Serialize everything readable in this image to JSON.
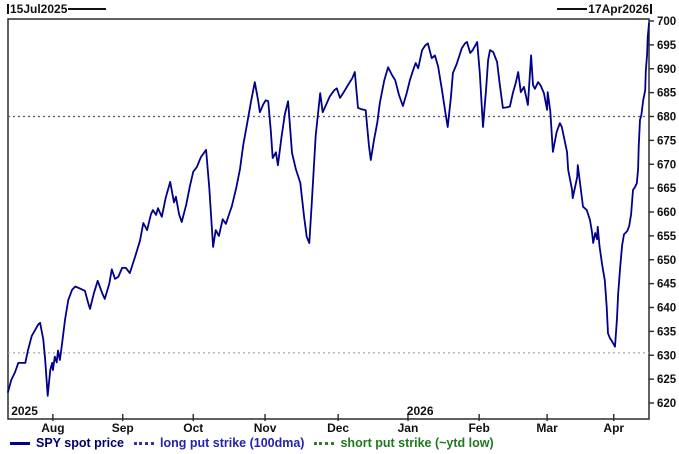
{
  "annotations": {
    "start": "15Jul2025",
    "end": "17Apr2026"
  },
  "legend": [
    {
      "label": "SPY spot price",
      "swatch": "solid",
      "swatch_color": "#00008b",
      "text_color": "#00006b"
    },
    {
      "label": "long put strike (100dma)",
      "swatch": "dotted",
      "swatch_color": "#32329e",
      "text_color": "#2323b0"
    },
    {
      "label": "short put strike (~ytd low)",
      "swatch": "dotted",
      "swatch_color": "#2e7d32",
      "text_color": "#1f7a1f"
    }
  ],
  "chart_data": {
    "type": "line",
    "title": "",
    "xlabel": "",
    "ylabel": "",
    "x_range": {
      "start": "2025-07-15",
      "end": "2026-04-17"
    },
    "y_axis": {
      "min": 620,
      "max": 700,
      "tick_step": 5,
      "side": "right"
    },
    "grid": "off",
    "legend_position": "bottom-left",
    "x_ticks": [
      {
        "label": "Aug",
        "f": 0.07
      },
      {
        "label": "Sep",
        "f": 0.179
      },
      {
        "label": "Oct",
        "f": 0.289
      },
      {
        "label": "Nov",
        "f": 0.401
      },
      {
        "label": "Dec",
        "f": 0.515
      },
      {
        "label": "Jan",
        "f": 0.624
      },
      {
        "label": "Feb",
        "f": 0.735
      },
      {
        "label": "Mar",
        "f": 0.841
      },
      {
        "label": "Apr",
        "f": 0.945
      }
    ],
    "year_labels": [
      {
        "label": "2025",
        "f": 0.005,
        "align": "start"
      },
      {
        "label": "2026",
        "f": 0.643,
        "align": "middle"
      }
    ],
    "reference_lines": [
      {
        "name": "long put strike (100dma)",
        "value": 680,
        "style": "dotted",
        "color": "#55557d"
      },
      {
        "name": "short put strike (~ytd low)",
        "value": 630.5,
        "style": "dotted",
        "color": "#a2aba2"
      }
    ],
    "series": [
      {
        "name": "SPY spot price",
        "color": "#00008b",
        "width": 1.8,
        "points": [
          [
            0.0,
            622.3
          ],
          [
            0.005,
            624.8
          ],
          [
            0.011,
            626.5
          ],
          [
            0.016,
            628.4
          ],
          [
            0.027,
            628.4
          ],
          [
            0.031,
            631
          ],
          [
            0.037,
            634
          ],
          [
            0.047,
            636.4
          ],
          [
            0.05,
            636.8
          ],
          [
            0.055,
            633.3
          ],
          [
            0.058,
            629
          ],
          [
            0.062,
            621.5
          ],
          [
            0.066,
            627
          ],
          [
            0.069,
            628.4
          ],
          [
            0.07,
            626.9
          ],
          [
            0.073,
            629.7
          ],
          [
            0.076,
            628.5
          ],
          [
            0.078,
            631
          ],
          [
            0.081,
            629
          ],
          [
            0.084,
            632
          ],
          [
            0.089,
            637.4
          ],
          [
            0.094,
            641.6
          ],
          [
            0.1,
            643.7
          ],
          [
            0.105,
            644.4
          ],
          [
            0.112,
            644
          ],
          [
            0.12,
            643.5
          ],
          [
            0.125,
            641
          ],
          [
            0.128,
            639.7
          ],
          [
            0.134,
            643
          ],
          [
            0.14,
            645.6
          ],
          [
            0.147,
            643
          ],
          [
            0.151,
            641.8
          ],
          [
            0.158,
            645
          ],
          [
            0.162,
            648
          ],
          [
            0.167,
            646
          ],
          [
            0.172,
            646.4
          ],
          [
            0.178,
            648.3
          ],
          [
            0.184,
            648.3
          ],
          [
            0.19,
            647.2
          ],
          [
            0.198,
            650.5
          ],
          [
            0.206,
            654
          ],
          [
            0.211,
            657.7
          ],
          [
            0.217,
            656.2
          ],
          [
            0.223,
            659.5
          ],
          [
            0.226,
            660.4
          ],
          [
            0.231,
            659.4
          ],
          [
            0.234,
            660.8
          ],
          [
            0.24,
            659
          ],
          [
            0.246,
            663
          ],
          [
            0.253,
            666.3
          ],
          [
            0.259,
            662
          ],
          [
            0.262,
            663.2
          ],
          [
            0.267,
            659.5
          ],
          [
            0.271,
            657.9
          ],
          [
            0.278,
            661.5
          ],
          [
            0.284,
            665.5
          ],
          [
            0.289,
            668.4
          ],
          [
            0.295,
            669.5
          ],
          [
            0.301,
            671.5
          ],
          [
            0.309,
            673
          ],
          [
            0.314,
            665
          ],
          [
            0.32,
            652.7
          ],
          [
            0.324,
            656.2
          ],
          [
            0.329,
            655
          ],
          [
            0.335,
            658.5
          ],
          [
            0.34,
            657.5
          ],
          [
            0.346,
            660
          ],
          [
            0.349,
            661.1
          ],
          [
            0.356,
            665
          ],
          [
            0.362,
            669
          ],
          [
            0.367,
            674
          ],
          [
            0.373,
            678.5
          ],
          [
            0.379,
            683
          ],
          [
            0.385,
            687.2
          ],
          [
            0.39,
            683.5
          ],
          [
            0.393,
            680.9
          ],
          [
            0.398,
            682.5
          ],
          [
            0.402,
            683.4
          ],
          [
            0.406,
            683.2
          ],
          [
            0.41,
            677
          ],
          [
            0.413,
            671.3
          ],
          [
            0.418,
            672.5
          ],
          [
            0.421,
            669.8
          ],
          [
            0.427,
            676
          ],
          [
            0.432,
            680.5
          ],
          [
            0.437,
            683.2
          ],
          [
            0.443,
            672.4
          ],
          [
            0.449,
            669
          ],
          [
            0.456,
            666.1
          ],
          [
            0.462,
            659
          ],
          [
            0.466,
            654.8
          ],
          [
            0.47,
            653.5
          ],
          [
            0.474,
            662
          ],
          [
            0.48,
            676
          ],
          [
            0.487,
            684.9
          ],
          [
            0.491,
            680.9
          ],
          [
            0.498,
            683
          ],
          [
            0.502,
            684.2
          ],
          [
            0.509,
            685.5
          ],
          [
            0.513,
            685.9
          ],
          [
            0.518,
            683.9
          ],
          [
            0.523,
            684.9
          ],
          [
            0.53,
            686.5
          ],
          [
            0.537,
            688
          ],
          [
            0.541,
            689.3
          ],
          [
            0.546,
            681.8
          ],
          [
            0.552,
            681.5
          ],
          [
            0.558,
            681.3
          ],
          [
            0.563,
            674
          ],
          [
            0.566,
            670.9
          ],
          [
            0.571,
            675.1
          ],
          [
            0.576,
            678.6
          ],
          [
            0.58,
            682.8
          ],
          [
            0.587,
            687.6
          ],
          [
            0.593,
            690.3
          ],
          [
            0.599,
            688.7
          ],
          [
            0.604,
            687.6
          ],
          [
            0.61,
            684.5
          ],
          [
            0.616,
            682.2
          ],
          [
            0.622,
            684.9
          ],
          [
            0.627,
            687.6
          ],
          [
            0.632,
            689.7
          ],
          [
            0.636,
            691.2
          ],
          [
            0.64,
            690.1
          ],
          [
            0.646,
            693.9
          ],
          [
            0.651,
            694.9
          ],
          [
            0.655,
            695.3
          ],
          [
            0.661,
            692.2
          ],
          [
            0.666,
            692.8
          ],
          [
            0.671,
            690.5
          ],
          [
            0.677,
            685.5
          ],
          [
            0.683,
            680.3
          ],
          [
            0.686,
            677.8
          ],
          [
            0.691,
            684
          ],
          [
            0.694,
            689.1
          ],
          [
            0.7,
            691
          ],
          [
            0.708,
            694.3
          ],
          [
            0.713,
            695.3
          ],
          [
            0.716,
            695.6
          ],
          [
            0.721,
            693.3
          ],
          [
            0.725,
            693.9
          ],
          [
            0.732,
            695.6
          ],
          [
            0.736,
            689.1
          ],
          [
            0.741,
            677.8
          ],
          [
            0.746,
            686
          ],
          [
            0.749,
            691.8
          ],
          [
            0.752,
            693.9
          ],
          [
            0.757,
            693.5
          ],
          [
            0.763,
            691.4
          ],
          [
            0.767,
            687
          ],
          [
            0.772,
            681.8
          ],
          [
            0.778,
            681.9
          ],
          [
            0.783,
            682.1
          ],
          [
            0.788,
            685.1
          ],
          [
            0.792,
            687
          ],
          [
            0.796,
            689.3
          ],
          [
            0.8,
            685.1
          ],
          [
            0.805,
            686.2
          ],
          [
            0.811,
            682.4
          ],
          [
            0.816,
            692.8
          ],
          [
            0.819,
            686.6
          ],
          [
            0.822,
            685.8
          ],
          [
            0.827,
            687.2
          ],
          [
            0.831,
            686.5
          ],
          [
            0.836,
            684.9
          ],
          [
            0.841,
            681.4
          ],
          [
            0.842,
            685.1
          ],
          [
            0.846,
            681.1
          ],
          [
            0.85,
            672.6
          ],
          [
            0.856,
            676.8
          ],
          [
            0.861,
            678.6
          ],
          [
            0.864,
            677.8
          ],
          [
            0.872,
            672.6
          ],
          [
            0.874,
            668.8
          ],
          [
            0.88,
            664.6
          ],
          [
            0.881,
            662.9
          ],
          [
            0.888,
            667.3
          ],
          [
            0.889,
            669.8
          ],
          [
            0.897,
            661.1
          ],
          [
            0.903,
            660.4
          ],
          [
            0.908,
            658.3
          ],
          [
            0.911,
            655.8
          ],
          [
            0.913,
            653.5
          ],
          [
            0.916,
            655.6
          ],
          [
            0.919,
            654.3
          ],
          [
            0.92,
            656.9
          ],
          [
            0.923,
            652.7
          ],
          [
            0.927,
            648.9
          ],
          [
            0.931,
            645.7
          ],
          [
            0.934,
            640.1
          ],
          [
            0.936,
            634.6
          ],
          [
            0.939,
            633.6
          ],
          [
            0.942,
            633
          ],
          [
            0.945,
            632.3
          ],
          [
            0.947,
            631.8
          ],
          [
            0.95,
            637.4
          ],
          [
            0.952,
            643
          ],
          [
            0.955,
            648.5
          ],
          [
            0.958,
            653
          ],
          [
            0.961,
            655.3
          ],
          [
            0.966,
            656
          ],
          [
            0.969,
            657
          ],
          [
            0.972,
            659.5
          ],
          [
            0.975,
            664.6
          ],
          [
            0.978,
            665.2
          ],
          [
            0.981,
            666
          ],
          [
            0.983,
            669
          ],
          [
            0.984,
            673.6
          ],
          [
            0.986,
            679.3
          ],
          [
            0.988,
            680.2
          ],
          [
            0.991,
            683.4
          ],
          [
            0.994,
            685.5
          ],
          [
            0.995,
            689.5
          ],
          [
            0.997,
            693
          ],
          [
            0.998,
            696.5
          ],
          [
            1.0,
            699.5
          ]
        ]
      }
    ]
  }
}
